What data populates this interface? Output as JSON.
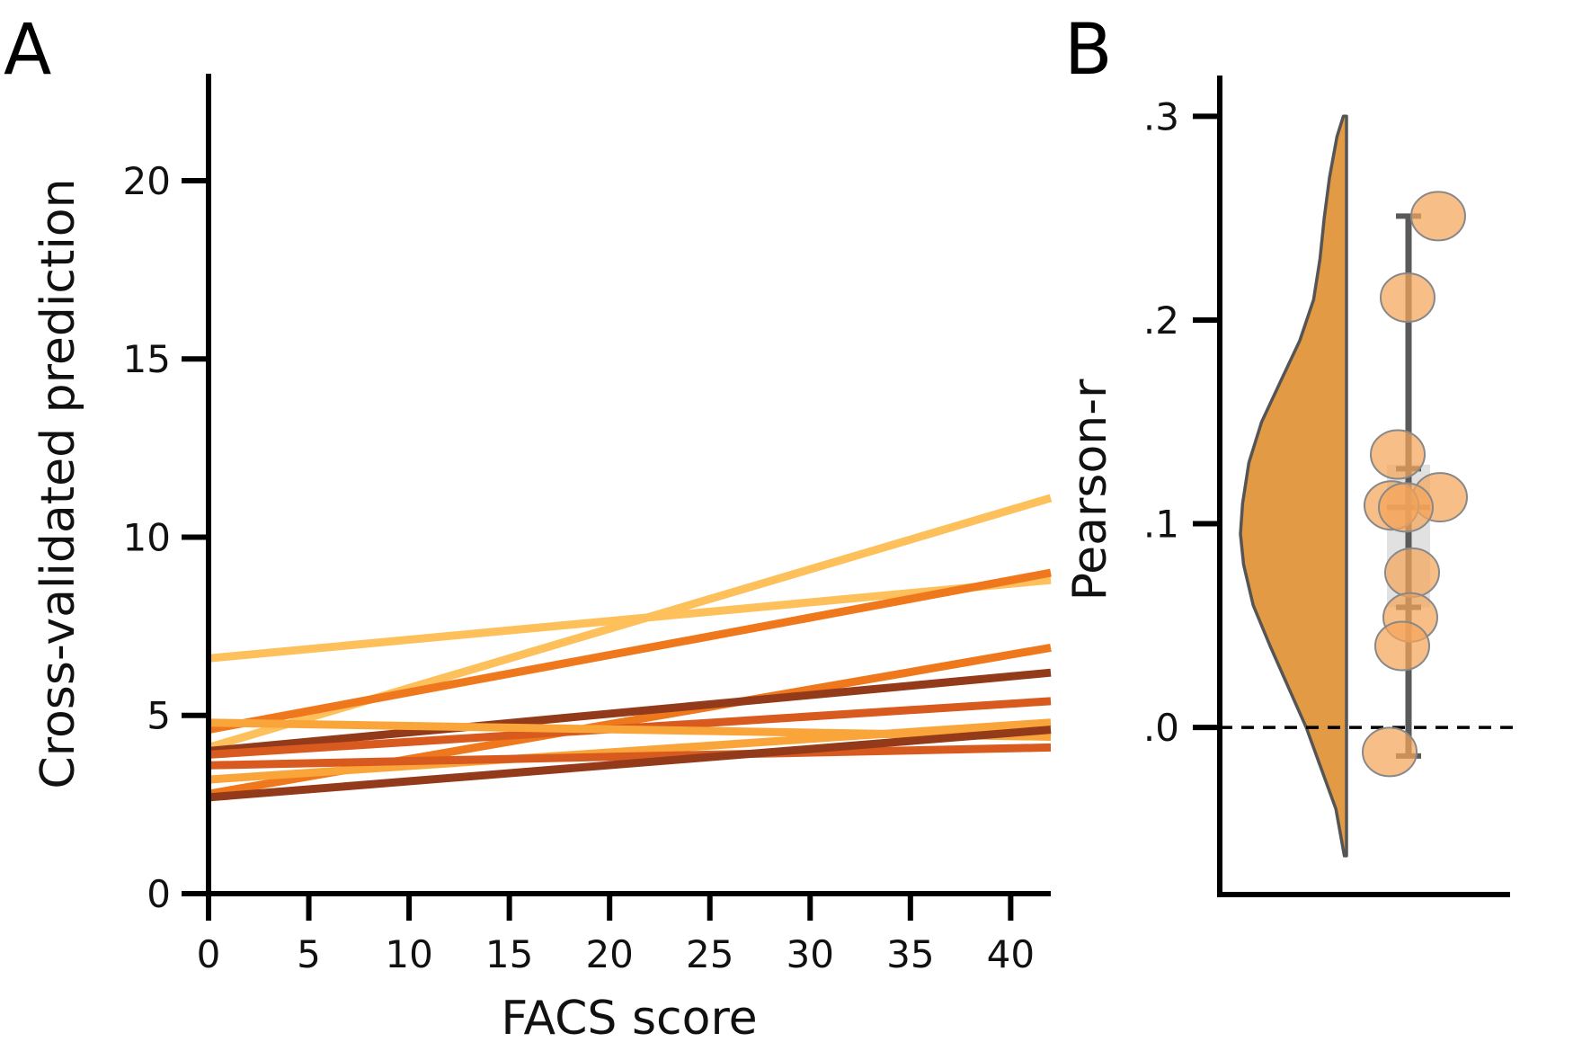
{
  "colors": {
    "axis": "#000000",
    "violin_fill": "#E39A45",
    "violin_edge": "#555555",
    "points_fill": "#F5A55A",
    "points_edge": "#888888",
    "whisker": "#5A5A5A",
    "box_fill": "#C8C8C8",
    "zero_line": "#000000"
  },
  "chart_data": [
    {
      "panel_label": "A",
      "type": "line",
      "xlabel": "FACS score",
      "ylabel": "Cross-validated prediction",
      "xlim": [
        0,
        42
      ],
      "ylim": [
        0,
        23
      ],
      "xticks": [
        0,
        5,
        10,
        15,
        20,
        25,
        30,
        35,
        40
      ],
      "xtick_labels": [
        "0",
        "5",
        "10",
        "15",
        "20",
        "25",
        "30",
        "35",
        "40"
      ],
      "yticks": [
        0,
        5,
        10,
        15,
        20
      ],
      "ytick_labels": [
        "0",
        "5",
        "10",
        "15",
        "20"
      ],
      "grid": false,
      "series": [
        {
          "x": [
            0,
            42
          ],
          "y": [
            4.1,
            11.1
          ],
          "color": "#FDC05A"
        },
        {
          "x": [
            0,
            42
          ],
          "y": [
            6.6,
            8.8
          ],
          "color": "#FDC05A"
        },
        {
          "x": [
            0,
            42
          ],
          "y": [
            4.6,
            9.0
          ],
          "color": "#F0781C"
        },
        {
          "x": [
            0,
            42
          ],
          "y": [
            2.8,
            6.9
          ],
          "color": "#F0781C"
        },
        {
          "x": [
            0,
            42
          ],
          "y": [
            4.0,
            6.2
          ],
          "color": "#933A1A"
        },
        {
          "x": [
            0,
            42
          ],
          "y": [
            3.9,
            5.4
          ],
          "color": "#D95A1E"
        },
        {
          "x": [
            0,
            42
          ],
          "y": [
            4.8,
            4.4
          ],
          "color": "#F9A53A"
        },
        {
          "x": [
            0,
            42
          ],
          "y": [
            3.2,
            4.8
          ],
          "color": "#F9A53A"
        },
        {
          "x": [
            0,
            42
          ],
          "y": [
            3.6,
            4.1
          ],
          "color": "#D95A1E"
        },
        {
          "x": [
            0,
            42
          ],
          "y": [
            2.7,
            4.6
          ],
          "color": "#933A1A"
        }
      ]
    },
    {
      "panel_label": "B",
      "type": "scatter",
      "xlabel": "",
      "ylabel": "Pearson-r",
      "ylim": [
        -0.082,
        0.32
      ],
      "yticks": [
        0.0,
        0.1,
        0.2,
        0.3
      ],
      "ytick_labels": [
        ".0",
        ".1",
        ".2",
        ".3"
      ],
      "reference_line": 0.0,
      "grid": false,
      "points": [
        0.251,
        0.211,
        0.134,
        0.113,
        0.109,
        0.108,
        0.076,
        0.054,
        0.04,
        -0.012
      ],
      "violin": {
        "min": -0.063,
        "max": 0.3,
        "density": [
          [
            -0.063,
            0.02
          ],
          [
            -0.04,
            0.1
          ],
          [
            -0.02,
            0.24
          ],
          [
            0.0,
            0.38
          ],
          [
            0.02,
            0.55
          ],
          [
            0.04,
            0.72
          ],
          [
            0.06,
            0.88
          ],
          [
            0.08,
            0.97
          ],
          [
            0.095,
            1.0
          ],
          [
            0.11,
            0.98
          ],
          [
            0.13,
            0.92
          ],
          [
            0.15,
            0.8
          ],
          [
            0.17,
            0.62
          ],
          [
            0.19,
            0.44
          ],
          [
            0.21,
            0.31
          ],
          [
            0.23,
            0.25
          ],
          [
            0.25,
            0.21
          ],
          [
            0.27,
            0.16
          ],
          [
            0.29,
            0.09
          ],
          [
            0.3,
            0.03
          ]
        ]
      },
      "box": {
        "q1": 0.059,
        "q3": 0.129
      },
      "mean": 0.108,
      "ci_low": 0.059,
      "ci_high": 0.127,
      "whisker_low": -0.014,
      "whisker_high": 0.251
    }
  ]
}
